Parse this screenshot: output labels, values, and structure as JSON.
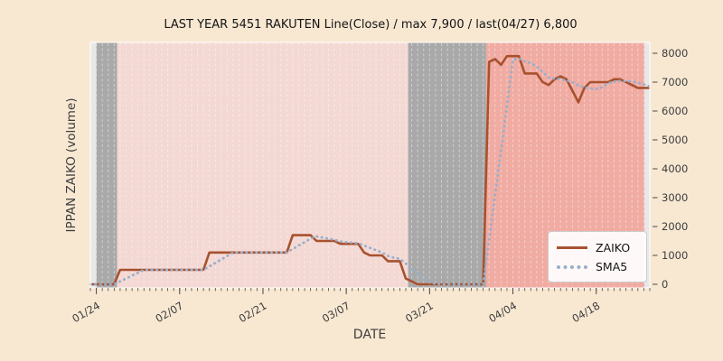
{
  "title": "LAST YEAR 5451 RAKUTEN Line(Close) / max 7,900 / last(04/27) 6,800",
  "x_axis": {
    "label": "DATE",
    "major_ticks": [
      {
        "index": 1,
        "label": "01/24"
      },
      {
        "index": 15,
        "label": "02/07"
      },
      {
        "index": 29,
        "label": "02/21"
      },
      {
        "index": 43,
        "label": "03/07"
      },
      {
        "index": 57,
        "label": "03/21"
      },
      {
        "index": 71,
        "label": "04/04"
      },
      {
        "index": 85,
        "label": "04/18"
      }
    ]
  },
  "y_axis": {
    "label": "IPPAN ZAIKO (volume)",
    "ticks": [
      0,
      1000,
      2000,
      3000,
      4000,
      5000,
      6000,
      7000,
      8000
    ]
  },
  "legend": {
    "items": [
      {
        "label": "ZAIKO",
        "style": "solid",
        "color": "#a8512e"
      },
      {
        "label": "SMA5",
        "style": "dotted",
        "color": "#98aecb"
      }
    ]
  },
  "colors": {
    "figure_bg": "#f8e8d2",
    "axes_bg": "#e8e8e8",
    "band_gray": "#a9a9a9",
    "band_pink_light": "#f3d8d3",
    "band_pink_dark": "#f0aba2",
    "gridline": "rgba(255,255,255,0.45)",
    "zaiko_line": "#a8512e",
    "sma5_line": "#98aecb",
    "tick": "#4a4a4a",
    "tick_label": "#3d3d3d",
    "spine": "rgba(255,255,255,0.85)"
  },
  "chart_data": {
    "type": "line",
    "title": "LAST YEAR 5451 RAKUTEN Line(Close) / max 7,900 / last(04/27) 6,800",
    "xlabel": "DATE",
    "ylabel": "IPPAN ZAIKO (volume)",
    "ylim": [
      0,
      8000
    ],
    "legend_position": "lower right",
    "grid": "daily vertical dashed lines",
    "stats": {
      "max": 7900,
      "last_date": "04/27",
      "last_value": 6800
    },
    "dates": [
      "01/23",
      "01/24",
      "01/25",
      "01/26",
      "01/27",
      "01/28",
      "01/29",
      "01/30",
      "01/31",
      "02/01",
      "02/02",
      "02/03",
      "02/04",
      "02/05",
      "02/06",
      "02/07",
      "02/08",
      "02/09",
      "02/10",
      "02/11",
      "02/12",
      "02/13",
      "02/14",
      "02/15",
      "02/16",
      "02/17",
      "02/18",
      "02/19",
      "02/20",
      "02/21",
      "02/22",
      "02/23",
      "02/24",
      "02/25",
      "02/26",
      "02/27",
      "02/28",
      "03/01",
      "03/02",
      "03/03",
      "03/04",
      "03/05",
      "03/06",
      "03/07",
      "03/08",
      "03/09",
      "03/10",
      "03/11",
      "03/12",
      "03/13",
      "03/14",
      "03/15",
      "03/16",
      "03/17",
      "03/18",
      "03/19",
      "03/20",
      "03/21",
      "03/22",
      "03/23",
      "03/24",
      "03/25",
      "03/26",
      "03/27",
      "03/28",
      "03/29",
      "03/30",
      "03/31",
      "04/01",
      "04/02",
      "04/03",
      "04/04",
      "04/05",
      "04/06",
      "04/07",
      "04/08",
      "04/09",
      "04/10",
      "04/11",
      "04/12",
      "04/13",
      "04/14",
      "04/15",
      "04/16",
      "04/17",
      "04/18",
      "04/19",
      "04/20",
      "04/21",
      "04/22",
      "04/23",
      "04/24",
      "04/25",
      "04/26",
      "04/27"
    ],
    "series": [
      {
        "name": "ZAIKO",
        "values": [
          0,
          0,
          0,
          0,
          0,
          500,
          500,
          500,
          500,
          500,
          500,
          500,
          500,
          500,
          500,
          500,
          500,
          500,
          500,
          500,
          1100,
          1100,
          1100,
          1100,
          1100,
          1100,
          1100,
          1100,
          1100,
          1100,
          1100,
          1100,
          1100,
          1100,
          1700,
          1700,
          1700,
          1700,
          1500,
          1500,
          1500,
          1500,
          1400,
          1400,
          1400,
          1400,
          1100,
          1000,
          1000,
          1000,
          800,
          800,
          800,
          200,
          100,
          0,
          0,
          0,
          0,
          0,
          0,
          0,
          0,
          0,
          0,
          0,
          0,
          7700,
          7800,
          7600,
          7900,
          7900,
          7900,
          7300,
          7300,
          7300,
          7000,
          6900,
          7100,
          7200,
          7100,
          6700,
          6300,
          6800,
          7000,
          7000,
          7000,
          7000,
          7100,
          7100,
          7000,
          6900,
          6800,
          6800,
          6800
        ]
      },
      {
        "name": "SMA5",
        "derived_from": "ZAIKO",
        "window": 5
      }
    ],
    "bands": [
      {
        "start_index": 1.0,
        "end_index": 4.5,
        "start_date": "01/24",
        "end_date": "01/27",
        "style": "gray"
      },
      {
        "start_index": 4.5,
        "end_index": 53.4,
        "start_date": "01/27",
        "end_date": "03/17",
        "style": "pink_light"
      },
      {
        "start_index": 53.4,
        "end_index": 66.5,
        "start_date": "03/17",
        "end_date": "03/30",
        "style": "gray"
      },
      {
        "start_index": 66.5,
        "end_index": 93.1,
        "start_date": "03/30",
        "end_date": "04/27",
        "style": "pink_dark"
      }
    ]
  }
}
